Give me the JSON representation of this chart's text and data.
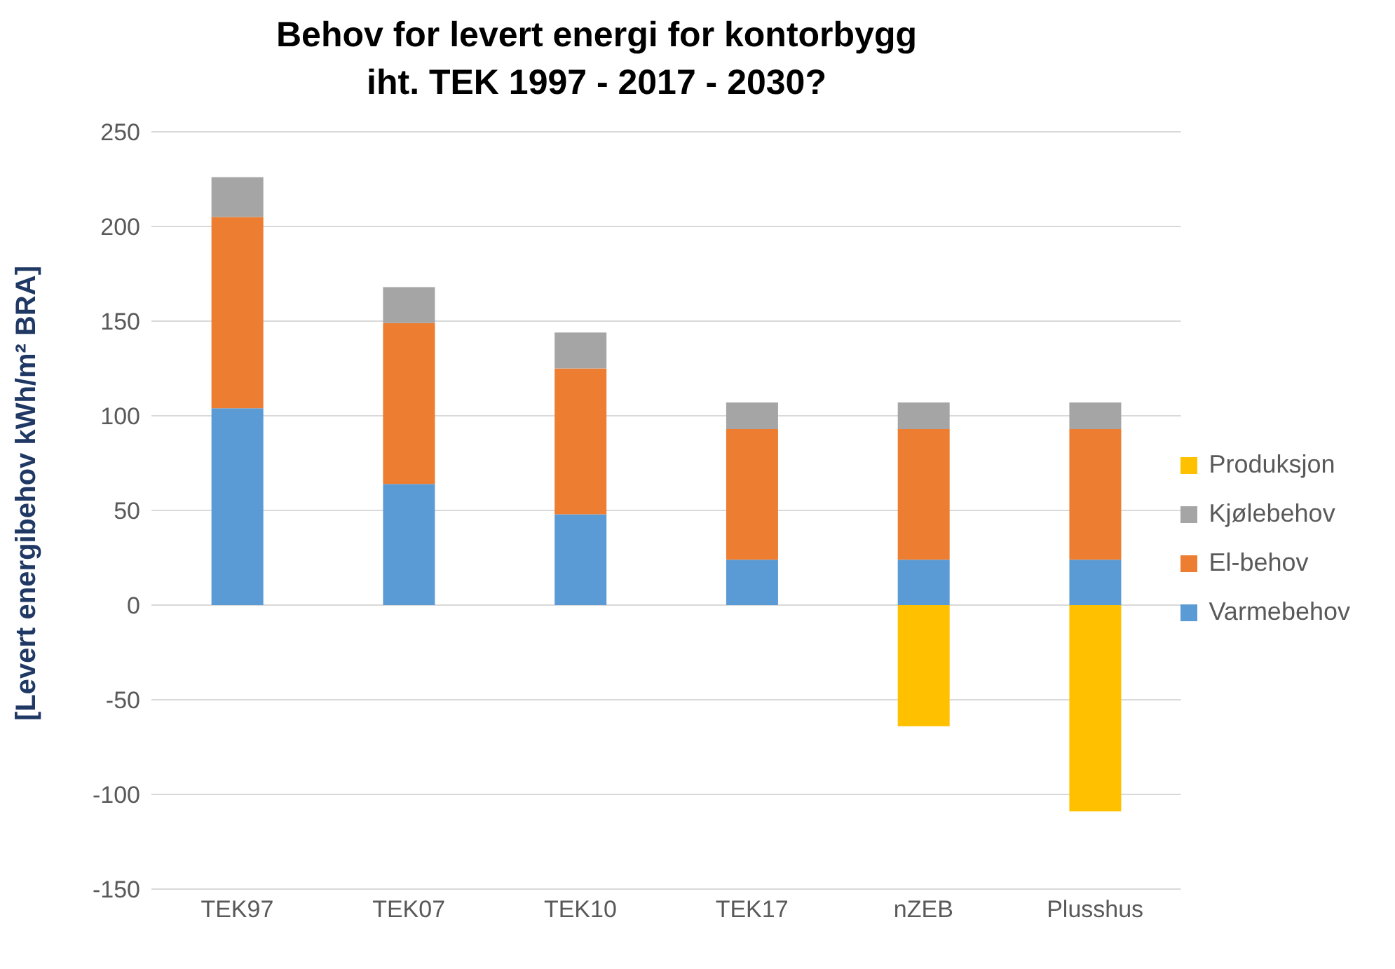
{
  "chart_data": {
    "type": "bar",
    "title": "Behov for levert energi for kontorbygg\niht. TEK 1997 - 2017 - 2030?",
    "ylabel": "[Levert energibehov kWh/m² BRA]",
    "categories": [
      "TEK97",
      "TEK07",
      "TEK10",
      "TEK17",
      "nZEB",
      "Plusshus"
    ],
    "stacked": true,
    "series": [
      {
        "name": "Varmebehov",
        "color": "#5b9bd5",
        "values": [
          104,
          64,
          48,
          24,
          24,
          24
        ]
      },
      {
        "name": "El-behov",
        "color": "#ed7d31",
        "values": [
          101,
          85,
          77,
          69,
          69,
          69
        ]
      },
      {
        "name": "Kjølebehov",
        "color": "#a5a5a5",
        "values": [
          21,
          19,
          19,
          14,
          14,
          14
        ]
      },
      {
        "name": "Produksjon",
        "color": "#ffc000",
        "values": [
          null,
          null,
          null,
          null,
          -64,
          -109
        ]
      }
    ],
    "ylim": [
      -150,
      250
    ],
    "yticks": [
      -150,
      -100,
      -50,
      0,
      50,
      100,
      150,
      200,
      250
    ],
    "grid": "y",
    "legend": "right"
  }
}
